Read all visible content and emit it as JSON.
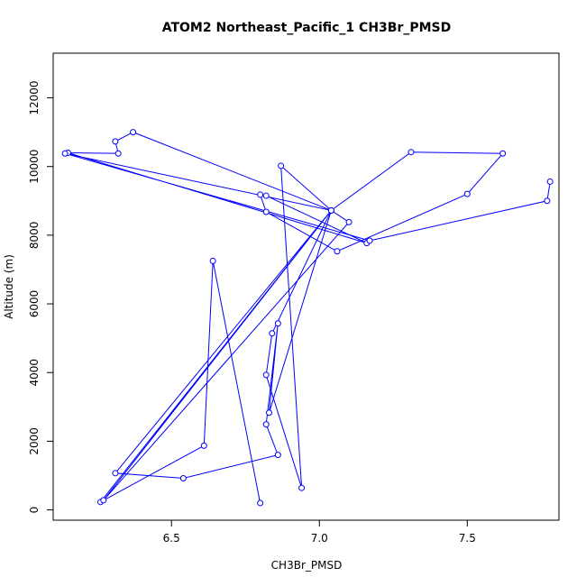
{
  "chart_data": {
    "type": "line",
    "title": "ATOM2 Northeast_Pacific_1 CH3Br_PMSD",
    "xlabel": "CH3Br_PMSD",
    "ylabel": "Altitude (m)",
    "xlim": [
      6.1,
      7.81
    ],
    "ylim": [
      -300,
      13300
    ],
    "xticks": [
      6.5,
      7.0,
      7.5
    ],
    "xtick_labels": [
      "6.5",
      "7.0",
      "7.5"
    ],
    "yticks": [
      0,
      2000,
      4000,
      6000,
      8000,
      10000,
      12000
    ],
    "ytick_labels": [
      "0",
      "2000",
      "4000",
      "6000",
      "8000",
      "10000",
      "12000"
    ],
    "grid": false,
    "legend": null,
    "series": [
      {
        "color": "#0000ff",
        "marker": "open-circle",
        "points": [
          {
            "x": 6.8,
            "y": 200
          },
          {
            "x": 6.64,
            "y": 7250
          },
          {
            "x": 6.61,
            "y": 1870
          },
          {
            "x": 6.26,
            "y": 230
          },
          {
            "x": 7.04,
            "y": 8720
          },
          {
            "x": 6.31,
            "y": 1070
          },
          {
            "x": 6.54,
            "y": 920
          },
          {
            "x": 6.86,
            "y": 1600
          },
          {
            "x": 6.82,
            "y": 2490
          },
          {
            "x": 6.86,
            "y": 5430
          },
          {
            "x": 6.83,
            "y": 2830
          },
          {
            "x": 7.04,
            "y": 8720
          },
          {
            "x": 6.87,
            "y": 10020
          },
          {
            "x": 6.94,
            "y": 640
          },
          {
            "x": 6.82,
            "y": 3930
          },
          {
            "x": 6.84,
            "y": 5140
          },
          {
            "x": 7.04,
            "y": 8720
          },
          {
            "x": 7.31,
            "y": 10420
          },
          {
            "x": 7.62,
            "y": 10380
          },
          {
            "x": 7.5,
            "y": 9200
          },
          {
            "x": 7.06,
            "y": 7530
          },
          {
            "x": 6.82,
            "y": 8680
          },
          {
            "x": 6.8,
            "y": 9180
          },
          {
            "x": 6.82,
            "y": 9150
          },
          {
            "x": 7.16,
            "y": 7770
          },
          {
            "x": 6.15,
            "y": 10400
          },
          {
            "x": 6.32,
            "y": 10380
          },
          {
            "x": 6.31,
            "y": 10730
          },
          {
            "x": 6.37,
            "y": 11000
          },
          {
            "x": 7.04,
            "y": 8720
          },
          {
            "x": 7.1,
            "y": 8380
          },
          {
            "x": 6.27,
            "y": 280
          },
          {
            "x": 7.04,
            "y": 8720
          },
          {
            "x": 6.14,
            "y": 10380
          },
          {
            "x": 7.17,
            "y": 7840
          },
          {
            "x": 7.77,
            "y": 9000
          },
          {
            "x": 7.78,
            "y": 9560
          }
        ]
      }
    ]
  }
}
